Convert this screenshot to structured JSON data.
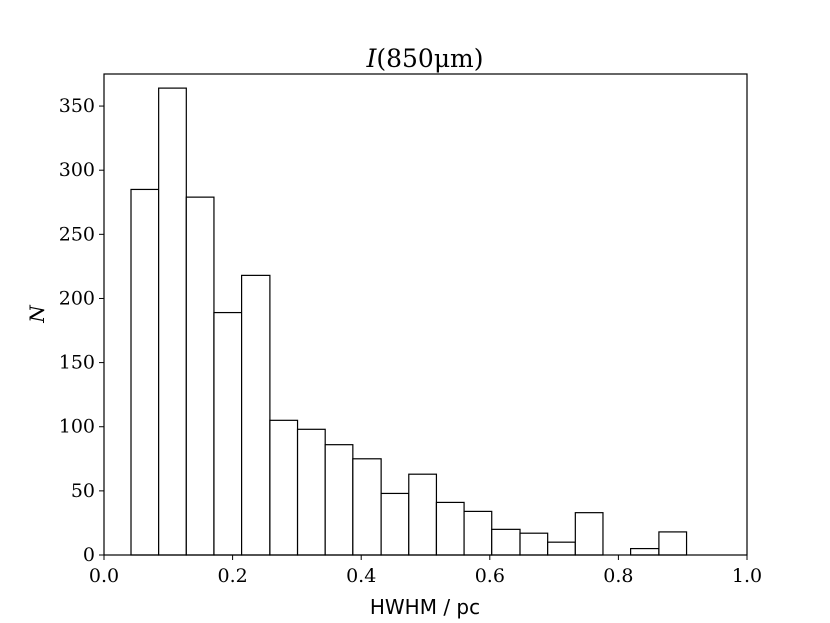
{
  "chart_data": {
    "type": "bar",
    "title_italic": "I",
    "title_rest": "(850μm)",
    "xlabel": "HWHM / pc",
    "ylabel": "N",
    "xlim": [
      0.0,
      1.0
    ],
    "ylim": [
      0,
      375
    ],
    "xticks": [
      "0.0",
      "0.2",
      "0.4",
      "0.6",
      "0.8",
      "1.0"
    ],
    "yticks": [
      "0",
      "50",
      "100",
      "150",
      "200",
      "250",
      "300",
      "350"
    ],
    "grid": false,
    "bins": [
      {
        "x0": 0.042,
        "x1": 0.085,
        "count": 285
      },
      {
        "x0": 0.085,
        "x1": 0.128,
        "count": 364
      },
      {
        "x0": 0.128,
        "x1": 0.171,
        "count": 279
      },
      {
        "x0": 0.171,
        "x1": 0.214,
        "count": 189
      },
      {
        "x0": 0.214,
        "x1": 0.258,
        "count": 218
      },
      {
        "x0": 0.258,
        "x1": 0.301,
        "count": 105
      },
      {
        "x0": 0.301,
        "x1": 0.344,
        "count": 98
      },
      {
        "x0": 0.344,
        "x1": 0.387,
        "count": 86
      },
      {
        "x0": 0.387,
        "x1": 0.431,
        "count": 75
      },
      {
        "x0": 0.431,
        "x1": 0.474,
        "count": 48
      },
      {
        "x0": 0.474,
        "x1": 0.517,
        "count": 63
      },
      {
        "x0": 0.517,
        "x1": 0.56,
        "count": 41
      },
      {
        "x0": 0.56,
        "x1": 0.603,
        "count": 34
      },
      {
        "x0": 0.603,
        "x1": 0.647,
        "count": 20
      },
      {
        "x0": 0.647,
        "x1": 0.69,
        "count": 17
      },
      {
        "x0": 0.69,
        "x1": 0.733,
        "count": 10
      },
      {
        "x0": 0.733,
        "x1": 0.776,
        "count": 33
      },
      {
        "x0": 0.776,
        "x1": 0.819,
        "count": 0
      },
      {
        "x0": 0.819,
        "x1": 0.863,
        "count": 5
      },
      {
        "x0": 0.863,
        "x1": 0.906,
        "count": 18
      }
    ]
  }
}
